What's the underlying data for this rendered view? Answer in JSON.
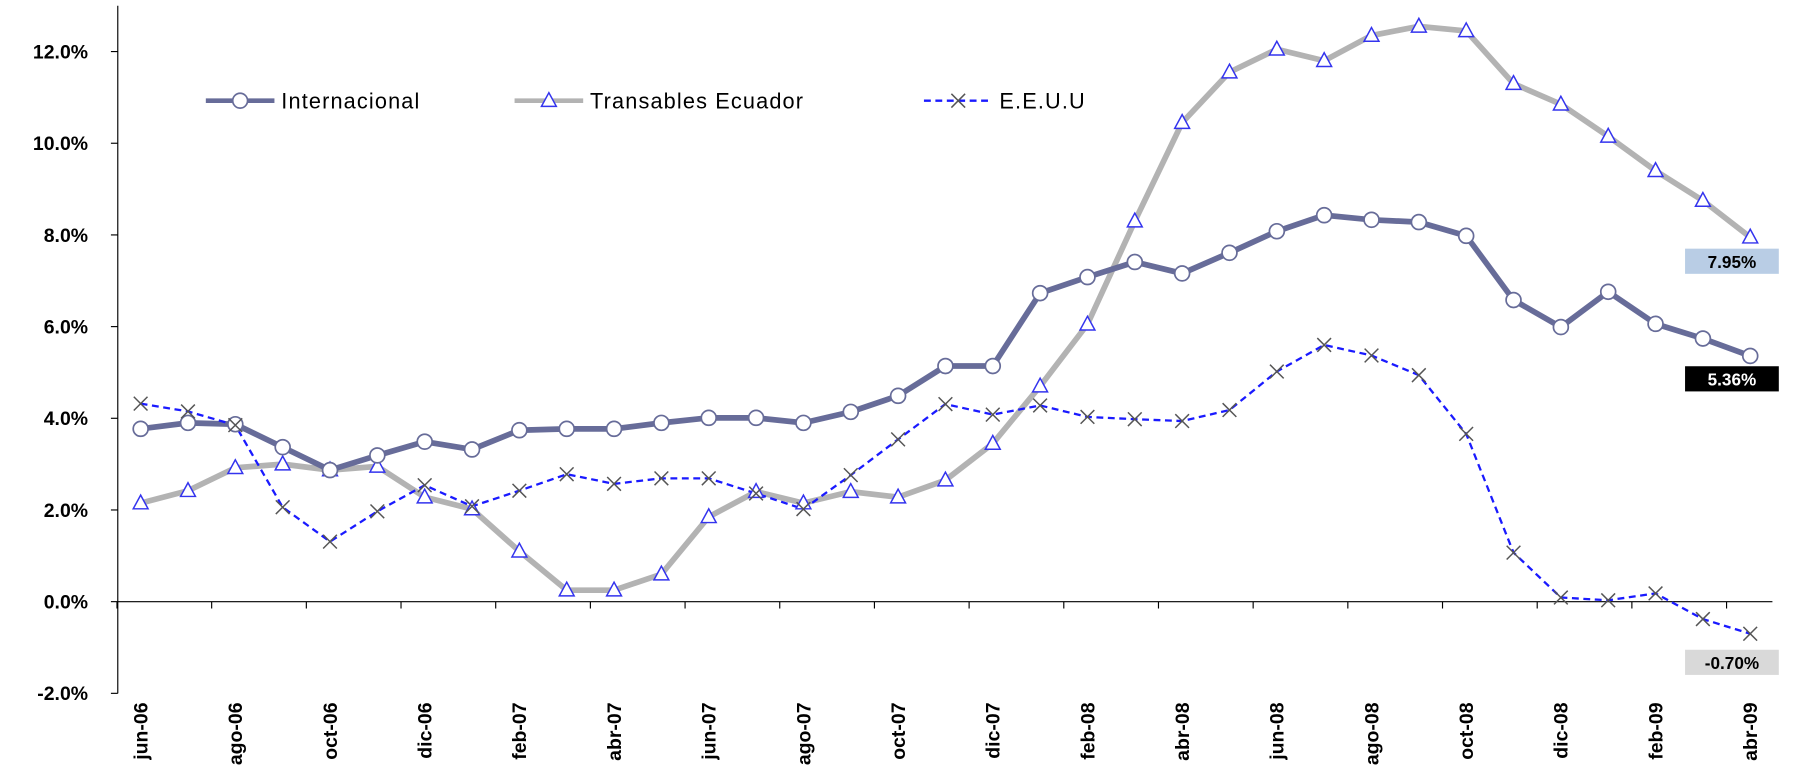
{
  "chart_data": {
    "type": "line",
    "categories": [
      "jun-06",
      null,
      "ago-06",
      null,
      "oct-06",
      null,
      "dic-06",
      null,
      "feb-07",
      null,
      "abr-07",
      null,
      "jun-07",
      null,
      "ago-07",
      null,
      "oct-07",
      null,
      "dic-07",
      null,
      "feb-08",
      null,
      "abr-08",
      null,
      "jun-08",
      null,
      "ago-08",
      null,
      "oct-08",
      null,
      "dic-08",
      null,
      "feb-09",
      null,
      "abr-09"
    ],
    "series": [
      {
        "name": "Internacional",
        "color": "#676c99",
        "marker": "circle",
        "values": [
          3.77,
          3.9,
          3.87,
          3.37,
          2.87,
          3.19,
          3.49,
          3.32,
          3.74,
          3.77,
          3.77,
          3.9,
          4.01,
          4.01,
          3.9,
          4.14,
          4.49,
          5.14,
          5.14,
          6.73,
          7.08,
          7.41,
          7.16,
          7.61,
          8.08,
          8.43,
          8.33,
          8.28,
          7.98,
          6.58,
          5.99,
          6.76,
          6.06,
          5.74,
          5.36
        ],
        "value_labels": [
          null,
          null,
          null,
          null,
          null,
          null,
          null,
          null,
          null,
          null,
          null,
          null,
          null,
          null,
          null,
          null,
          null,
          null,
          null,
          null,
          null,
          null,
          null,
          null,
          null,
          null,
          null,
          null,
          null,
          null,
          null,
          null,
          null,
          null,
          "5.36%"
        ]
      },
      {
        "name": "Transables Ecuador",
        "color": "#b3b3b3",
        "marker": "triangle",
        "values": [
          2.15,
          2.42,
          2.92,
          3.0,
          2.87,
          2.95,
          2.28,
          2.02,
          1.1,
          0.25,
          0.25,
          0.6,
          1.85,
          2.4,
          2.15,
          2.4,
          2.28,
          2.65,
          3.45,
          4.7,
          6.05,
          8.3,
          10.45,
          11.55,
          12.05,
          11.8,
          12.35,
          12.55,
          12.45,
          11.3,
          10.85,
          10.15,
          9.4,
          8.75,
          7.95
        ],
        "value_labels": [
          null,
          null,
          null,
          null,
          null,
          null,
          null,
          null,
          null,
          null,
          null,
          null,
          null,
          null,
          null,
          null,
          null,
          null,
          null,
          null,
          null,
          null,
          null,
          null,
          null,
          null,
          null,
          null,
          null,
          null,
          null,
          null,
          null,
          null,
          "7.95%"
        ]
      },
      {
        "name": "E.E.U.U",
        "color": "#1a1aff",
        "marker": "x",
        "dashed": true,
        "values": [
          4.32,
          4.15,
          3.85,
          2.06,
          1.31,
          1.97,
          2.54,
          2.08,
          2.42,
          2.78,
          2.57,
          2.69,
          2.69,
          2.36,
          2.02,
          2.76,
          3.54,
          4.31,
          4.08,
          4.28,
          4.03,
          3.98,
          3.94,
          4.18,
          5.02,
          5.6,
          5.37,
          4.94,
          3.66,
          1.07,
          0.09,
          0.03,
          0.18,
          -0.38,
          -0.7
        ],
        "value_labels": [
          null,
          null,
          null,
          null,
          null,
          null,
          null,
          null,
          null,
          null,
          null,
          null,
          null,
          null,
          null,
          null,
          null,
          null,
          null,
          null,
          null,
          null,
          null,
          null,
          null,
          null,
          null,
          null,
          null,
          null,
          null,
          null,
          null,
          null,
          "-0.70%"
        ]
      }
    ],
    "ylim": [
      -2,
      13
    ],
    "yticks": [
      {
        "value": -2,
        "label": "-2.0%"
      },
      {
        "value": 0,
        "label": "0.0%"
      },
      {
        "value": 2,
        "label": "2.0%"
      },
      {
        "value": 4,
        "label": "4.0%"
      },
      {
        "value": 6,
        "label": "6.0%"
      },
      {
        "value": 8,
        "label": "8.0%"
      },
      {
        "value": 10,
        "label": "10.0%"
      },
      {
        "value": 12,
        "label": "12.0%"
      }
    ],
    "grid": false
  }
}
